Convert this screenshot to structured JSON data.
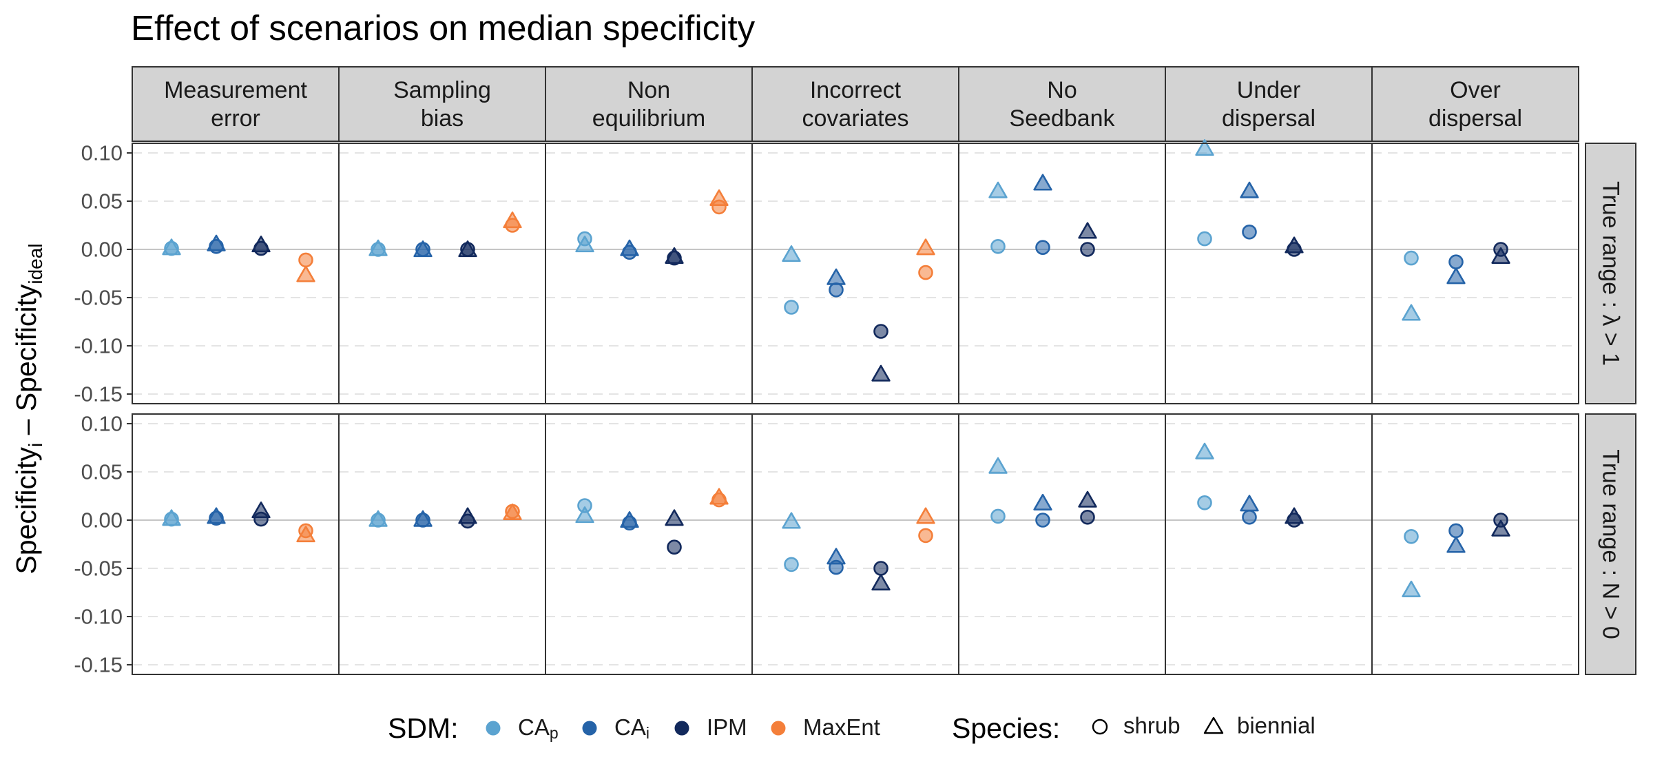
{
  "chart_data": {
    "type": "scatter",
    "title": "Effect of scenarios on median specificity",
    "ylabel": {
      "main1": "Specificity",
      "sub1": "i",
      "mid": " – Specificity",
      "sub2": "ideal"
    },
    "ylim": [
      -0.16,
      0.11
    ],
    "yticks": [
      0.1,
      0.05,
      0.0,
      -0.05,
      -0.1,
      -0.15
    ],
    "ytick_labels": [
      "0.10",
      "0.05",
      "0.00",
      "-0.05",
      "-0.10",
      "-0.15"
    ],
    "grid": true,
    "columns": [
      {
        "id": "measurement",
        "line1": "Measurement",
        "line2": "error"
      },
      {
        "id": "sampling",
        "line1": "Sampling",
        "line2": "bias"
      },
      {
        "id": "noneq",
        "line1": "Non",
        "line2": "equilibrium"
      },
      {
        "id": "covariates",
        "line1": "Incorrect",
        "line2": "covariates"
      },
      {
        "id": "seedbank",
        "line1": "No",
        "line2": "Seedbank"
      },
      {
        "id": "under",
        "line1": "Under",
        "line2": "dispersal"
      },
      {
        "id": "over",
        "line1": "Over",
        "line2": "dispersal"
      }
    ],
    "rows": [
      {
        "id": "lambda",
        "label": "True range : λ > 1"
      },
      {
        "id": "n",
        "label": "True range : N > 0"
      }
    ],
    "sdm_models": [
      {
        "id": "cap",
        "label": "CA",
        "sub": "p",
        "color": "#5ba3d0",
        "slot": 0
      },
      {
        "id": "cai",
        "label": "CA",
        "sub": "i",
        "color": "#2563a8",
        "slot": 1
      },
      {
        "id": "ipm",
        "label": "IPM",
        "sub": "",
        "color": "#12295c",
        "slot": 2
      },
      {
        "id": "maxent",
        "label": "MaxEnt",
        "sub": "",
        "color": "#f47f3a",
        "slot": 3
      }
    ],
    "species": [
      {
        "id": "shrub",
        "label": "shrub",
        "shape": "circle"
      },
      {
        "id": "biennial",
        "label": "biennial",
        "shape": "triangle"
      }
    ],
    "legend": {
      "sdm_title": "SDM:",
      "species_title": "Species:",
      "position": "bottom"
    },
    "values": {
      "lambda": {
        "measurement": {
          "cap": [
            0.001,
            0.001
          ],
          "cai": [
            0.003,
            0.005
          ],
          "ipm": [
            0.001,
            0.004
          ],
          "maxent": [
            -0.011,
            -0.027
          ]
        },
        "sampling": {
          "cap": [
            0.0,
            0.0
          ],
          "cai": [
            0.0,
            -0.001
          ],
          "ipm": [
            0.0,
            -0.001
          ],
          "maxent": [
            0.025,
            0.029
          ]
        },
        "noneq": {
          "cap": [
            0.011,
            0.004
          ],
          "cai": [
            -0.003,
            0.0
          ],
          "ipm": [
            -0.009,
            -0.008
          ],
          "maxent": [
            0.044,
            0.052
          ]
        },
        "covariates": {
          "cap": [
            -0.06,
            -0.006
          ],
          "cai": [
            -0.042,
            -0.03
          ],
          "ipm": [
            -0.085,
            -0.13
          ],
          "maxent": [
            -0.024,
            0.001
          ]
        },
        "seedbank": {
          "cap": [
            0.003,
            0.06
          ],
          "cai": [
            0.002,
            0.068
          ],
          "ipm": [
            0.0,
            0.018
          ]
        },
        "under": {
          "cap": [
            0.011,
            0.104
          ],
          "cai": [
            0.018,
            0.06
          ],
          "ipm": [
            0.0,
            0.003
          ]
        },
        "over": {
          "cap": [
            -0.009,
            -0.067
          ],
          "cai": [
            -0.013,
            -0.029
          ],
          "ipm": [
            0.0,
            -0.008
          ]
        }
      },
      "n": {
        "measurement": {
          "cap": [
            0.001,
            0.001
          ],
          "cai": [
            0.002,
            0.003
          ],
          "ipm": [
            0.001,
            0.009
          ],
          "maxent": [
            -0.011,
            -0.016
          ]
        },
        "sampling": {
          "cap": [
            0.0,
            0.0
          ],
          "cai": [
            0.0,
            0.0
          ],
          "ipm": [
            -0.001,
            0.003
          ],
          "maxent": [
            0.009,
            0.007
          ]
        },
        "noneq": {
          "cap": [
            0.015,
            0.004
          ],
          "cai": [
            -0.003,
            -0.001
          ],
          "ipm": [
            -0.028,
            0.001
          ],
          "maxent": [
            0.021,
            0.023
          ]
        },
        "covariates": {
          "cap": [
            -0.046,
            -0.002
          ],
          "cai": [
            -0.049,
            -0.039
          ],
          "ipm": [
            -0.05,
            -0.066
          ],
          "maxent": [
            -0.016,
            0.003
          ]
        },
        "seedbank": {
          "cap": [
            0.004,
            0.055
          ],
          "cai": [
            0.0,
            0.017
          ],
          "ipm": [
            0.003,
            0.02
          ]
        },
        "under": {
          "cap": [
            0.018,
            0.07
          ],
          "cai": [
            0.003,
            0.016
          ],
          "ipm": [
            0.0,
            0.003
          ]
        },
        "over": {
          "cap": [
            -0.017,
            -0.073
          ],
          "cai": [
            -0.011,
            -0.027
          ],
          "ipm": [
            0.0,
            -0.01
          ]
        }
      }
    }
  }
}
